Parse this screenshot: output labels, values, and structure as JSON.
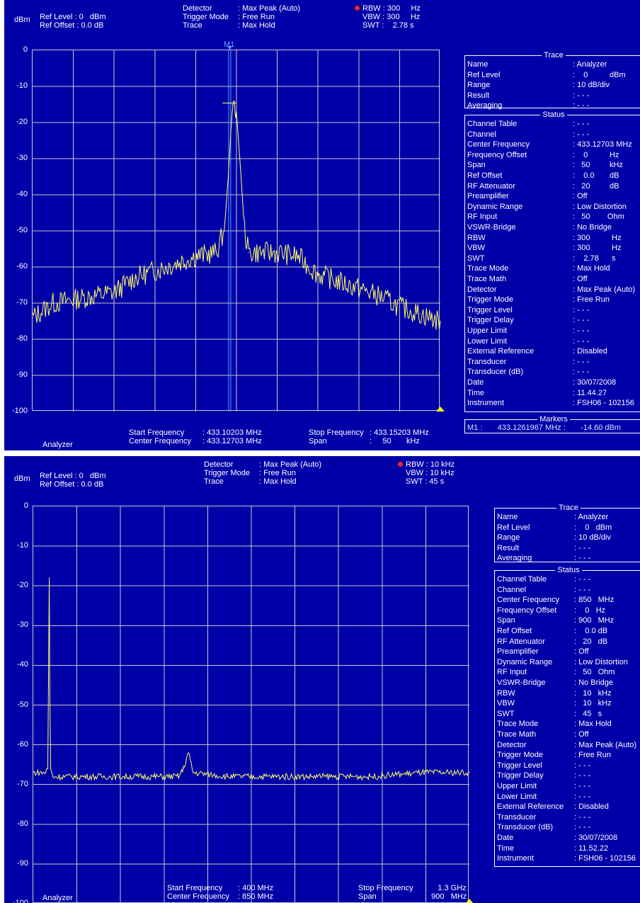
{
  "panels": [
    {
      "header": {
        "unit": "dBm",
        "ref_level": "Ref Level : 0   dBm",
        "ref_offset": "Ref Offset : 0.0 dB",
        "detector_keys": "Detector\nTrigger Mode\nTrace",
        "detector_vals": ": Max Peak (Auto)\n: Free Run\n: Max Hold",
        "bw_lines": "RBW : 300     Hz\nVBW : 300     Hz\nSWT :    2.78 s"
      },
      "y_ticks": [
        "0",
        "-10",
        "-20",
        "-30",
        "-40",
        "-50",
        "-60",
        "-70",
        "-80",
        "-90",
        "-100"
      ],
      "marker_label": "M1",
      "footer": {
        "mode": "Analyzer",
        "start_center_keys": "Start Frequency\nCenter Frequency",
        "start_center_vals": ": 433.10203 MHz\n: 433.12703 MHz",
        "stop_span_keys": "Stop Frequency\nSpan",
        "stop_span_vals": ": 433.15203 MHz\n:     50       kHz"
      },
      "trace_box": {
        "title": "Trace",
        "rows": [
          [
            "Name",
            ": Analyzer"
          ],
          [
            "Ref Level",
            ":    0          dBm"
          ],
          [
            "Range",
            ": 10 dB/div"
          ],
          [
            "Result",
            ": - - -"
          ],
          [
            "Averaging",
            ": - - -"
          ]
        ]
      },
      "status_box": {
        "title": "Status",
        "rows": [
          [
            "Channel Table",
            ": - - -"
          ],
          [
            "Channel",
            ": - - -"
          ],
          [
            "Center Frequency",
            ": 433.12703 MHz"
          ],
          [
            "Frequency Offset",
            ":    0          Hz"
          ],
          [
            "Span",
            ":   50         kHz"
          ],
          [
            "Ref Offset",
            ":    0.0       dB"
          ],
          [
            "RF Attenuator",
            ":   20         dB"
          ],
          [
            "Preamplifier",
            ": Off"
          ],
          [
            "Dynamic Range",
            ": Low Distortion"
          ],
          [
            "RF Input",
            ":   50        Ohm"
          ],
          [
            "VSWR-Bridge",
            ": No Bridge"
          ],
          [
            "RBW",
            ": 300          Hz"
          ],
          [
            "VBW",
            ": 300          Hz"
          ],
          [
            "SWT",
            ":    2.78      s"
          ],
          [
            "Trace Mode",
            ": Max Hold"
          ],
          [
            "Trace Math",
            ": Off"
          ],
          [
            "Detector",
            ": Max Peak (Auto)"
          ],
          [
            "Trigger Mode",
            ": Free Run"
          ],
          [
            "Trigger Level",
            ": - - -"
          ],
          [
            "Trigger Delay",
            ": - - -"
          ],
          [
            "Upper Limit",
            ": - - -"
          ],
          [
            "Lower Limit",
            ": - - -"
          ],
          [
            "External Reference",
            ": Disabled"
          ],
          [
            "Transducer",
            ": - - -"
          ],
          [
            "Transducer (dB)",
            ": - - -"
          ],
          [
            "Date",
            ": 30/07/2008"
          ],
          [
            "Time",
            ": 11.44.27"
          ],
          [
            "Instrument",
            ": FSH06 - 102156"
          ]
        ]
      },
      "markers_box": {
        "title": "Markers",
        "line": "M1 :       433.1261967 MHz :       -14.60 dBm"
      }
    },
    {
      "header": {
        "unit": "dBm",
        "ref_level": "Ref Level : 0   dBm",
        "ref_offset": "Ref Offset : 0.0 dB",
        "detector_keys": "Detector\nTrigger Mode\nTrace",
        "detector_vals": ": Max Peak (Auto)\n: Free Run\n: Max Hold",
        "bw_lines": "RBW : 10 kHz\nVBW : 10 kHz\nSWT : 45 s"
      },
      "y_ticks": [
        "0",
        "-10",
        "-20",
        "-30",
        "-40",
        "-50",
        "-60",
        "-70",
        "-80",
        "-90",
        "-100"
      ],
      "footer": {
        "mode": "Analyzer",
        "start_center_keys": "Start Frequency\nCenter Frequency",
        "start_center_vals": ": 400 MHz\n: 850 MHz",
        "stop_span_keys": "Stop Frequency\nSpan",
        "stop_span_vals": ":     1.3 GHz\n:  900   MHz"
      },
      "trace_box": {
        "title": "Trace",
        "rows": [
          [
            "Name",
            ": Analyzer"
          ],
          [
            "Ref Level",
            ":    0   dBm"
          ],
          [
            "Range",
            ": 10 dB/div"
          ],
          [
            "Result",
            ": - - -"
          ],
          [
            "Averaging",
            ": - - -"
          ]
        ]
      },
      "status_box": {
        "title": "Status",
        "rows": [
          [
            "Channel Table",
            ": - - -"
          ],
          [
            "Channel",
            ": - - -"
          ],
          [
            "Center Frequency",
            ": 850   MHz"
          ],
          [
            "Frequency Offset",
            ":    0   Hz"
          ],
          [
            "Span",
            ": 900   MHz"
          ],
          [
            "Ref Offset",
            ":    0.0 dB"
          ],
          [
            "RF Attenuator",
            ":   20   dB"
          ],
          [
            "Preamplifier",
            ": Off"
          ],
          [
            "Dynamic Range",
            ": Low Distortion"
          ],
          [
            "RF Input",
            ":   50   Ohm"
          ],
          [
            "VSWR-Bridge",
            ": No Bridge"
          ],
          [
            "RBW",
            ":   10   kHz"
          ],
          [
            "VBW",
            ":   10   kHz"
          ],
          [
            "SWT",
            ":   45   s"
          ],
          [
            "Trace Mode",
            ": Max Hold"
          ],
          [
            "Trace Math",
            ": Off"
          ],
          [
            "Detector",
            ": Max Peak (Auto)"
          ],
          [
            "Trigger Mode",
            ": Free Run"
          ],
          [
            "Trigger Level",
            ": - - -"
          ],
          [
            "Trigger Delay",
            ": - - -"
          ],
          [
            "Upper Limit",
            ": - - -"
          ],
          [
            "Lower Limit",
            ": - - -"
          ],
          [
            "External Reference",
            ": Disabled"
          ],
          [
            "Transducer",
            ": - - -"
          ],
          [
            "Transducer (dB)",
            ": - - -"
          ],
          [
            "Date",
            ": 30/07/2008"
          ],
          [
            "Time",
            ": 11.52.22"
          ],
          [
            "Instrument",
            ": FSH06 - 102156"
          ]
        ]
      }
    }
  ],
  "colors": {
    "background": "#0000a8",
    "trace": "#ffff66",
    "grid": "#c8c8c8",
    "marker": "#5aa0ff",
    "rbw_dot": "#ff2020"
  },
  "chart_data": [
    {
      "type": "line",
      "x_unit": "MHz",
      "y_unit": "dBm",
      "xlim": [
        433.10203,
        433.15203
      ],
      "ylim": [
        -100,
        0
      ],
      "grid": true,
      "marker": {
        "name": "M1",
        "x": 433.1261967,
        "y": -14.6
      },
      "series": [
        {
          "x": [
            433.10203,
            433.10453,
            433.10703,
            433.10953,
            433.11203,
            433.11453,
            433.11703,
            433.11953,
            433.12203,
            433.12453,
            433.12553,
            433.12603,
            433.12653,
            433.12703,
            433.12753,
            433.12803,
            433.12853,
            433.12953,
            433.13203,
            433.13453,
            433.13703,
            433.13953,
            433.14203,
            433.14453,
            433.14703,
            433.14953,
            433.15203
          ],
          "y": [
            -74,
            -70,
            -69,
            -68,
            -67,
            -63,
            -61,
            -59,
            -57,
            -56,
            -50,
            -35,
            -15,
            -17,
            -33,
            -50,
            -56,
            -56,
            -56,
            -57,
            -62,
            -64,
            -66,
            -68,
            -71,
            -73,
            -75
          ]
        }
      ]
    },
    {
      "type": "line",
      "x_unit": "MHz",
      "y_unit": "dBm",
      "xlim": [
        400,
        1300
      ],
      "ylim": [
        -100,
        0
      ],
      "grid": true,
      "series": [
        {
          "x": [
            400,
            425,
            430,
            432,
            433,
            434,
            436,
            440,
            500,
            600,
            650,
            700,
            710,
            720,
            730,
            800,
            900,
            1000,
            1100,
            1200,
            1300
          ],
          "y": [
            -67,
            -67,
            -66,
            -35,
            -18,
            -45,
            -66,
            -68,
            -68,
            -68,
            -68,
            -68,
            -66,
            -62,
            -67,
            -68,
            -68,
            -68,
            -68,
            -67,
            -67
          ]
        }
      ]
    }
  ]
}
